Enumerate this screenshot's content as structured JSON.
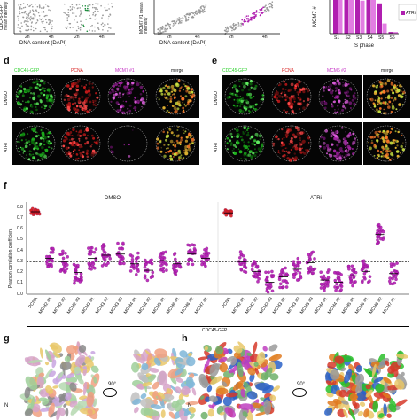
{
  "top": {
    "left_ylabel": "CDC45-GFP mean intensity",
    "left_xlabel": "DNA content (DAPI)",
    "left_ticks": [
      "2n",
      "4n",
      "2n",
      "4n"
    ],
    "mid_ylabel": "MCM7 #1 mean intensity",
    "mid_xlabel": "DNA content (DAPI)",
    "mid_ticks": [
      "2n",
      "4n",
      "2n",
      "4n"
    ],
    "right_ylabel": "MCM7 #",
    "right_xlabel": "S phase",
    "right_legend": "ATRi",
    "right_stages": [
      "S1",
      "S2",
      "S3",
      "S4",
      "S5",
      "S6"
    ],
    "right_bars_dmso": [
      1.0,
      1.0,
      1.0,
      1.0,
      0.9,
      0.05
    ],
    "right_bars_atri": [
      1.0,
      1.0,
      0.98,
      1.0,
      0.3,
      0.05
    ]
  },
  "panel_d": {
    "letter": "d",
    "columns": [
      "CDC45-GFP",
      "PCNA",
      "MCM7 #1",
      "merge"
    ],
    "rows": [
      "DMSO",
      "ATRi"
    ]
  },
  "panel_e": {
    "letter": "e",
    "columns": [
      "CDC45-GFP",
      "PCNA",
      "MCM6 #2",
      "merge"
    ],
    "rows": [
      "DMSO",
      "ATRi"
    ]
  },
  "panel_f": {
    "letter": "f",
    "ylabel": "Pearson correlation coefficient",
    "xlabel": "CDC45-GFP",
    "group_dmso": "DMSO",
    "group_atri": "ATRi",
    "yticks": [
      "0.8",
      "0.7",
      "0.6",
      "0.5",
      "0.4",
      "0.3",
      "0.2",
      "0.1",
      "0.0"
    ],
    "threshold": 0.3
  },
  "chart_data": {
    "type": "scatter",
    "ylim": [
      0,
      0.85
    ],
    "categories": [
      "PCNA",
      "MCM2 #1",
      "MCM2 #2",
      "MCM2 #3",
      "MCM3 #1",
      "MCM3 #2",
      "MCM3 #3",
      "MCM4 #1",
      "MCM4 #2",
      "MCM5 #1",
      "MCM6 #1",
      "MCM6 #2",
      "MCM7 #1",
      "PCNA",
      "MCM2 #1",
      "MCM2 #2",
      "MCM2 #3",
      "MCM3 #1",
      "MCM3 #2",
      "MCM3 #3",
      "MCM4 #1",
      "MCM4 #2",
      "MCM5 #1",
      "MCM6 #1",
      "MCM6 #2",
      "MCM7 #1"
    ],
    "series": [
      {
        "name": "DMSO",
        "values": [
          0.76,
          0.33,
          0.3,
          0.2,
          0.33,
          0.36,
          0.37,
          0.28,
          0.22,
          0.31,
          0.28,
          0.37,
          0.33,
          null,
          null,
          null,
          null,
          null,
          null,
          null,
          null,
          null,
          null,
          null,
          null,
          null
        ]
      },
      {
        "name": "ATRi",
        "values": [
          null,
          null,
          null,
          null,
          null,
          null,
          null,
          null,
          null,
          null,
          null,
          null,
          null,
          0.75,
          0.3,
          0.21,
          0.11,
          0.16,
          0.23,
          0.29,
          0.13,
          0.11,
          0.17,
          0.21,
          0.55,
          0.19
        ]
      }
    ]
  },
  "panel_g": {
    "letter": "g",
    "rotation": "90°",
    "axis_label": "N"
  },
  "panel_h": {
    "letter": "h",
    "rotation": "90°",
    "axis_label": "N"
  },
  "colors": {
    "pcna_red": "#d81e1e",
    "gfp_green": "#2bd12b",
    "mcm_magenta": "#c42fc4",
    "merge_yellow": "#e8c83a",
    "dmso_bar": "#b01fb0",
    "atri_bar": "#e27de2"
  }
}
